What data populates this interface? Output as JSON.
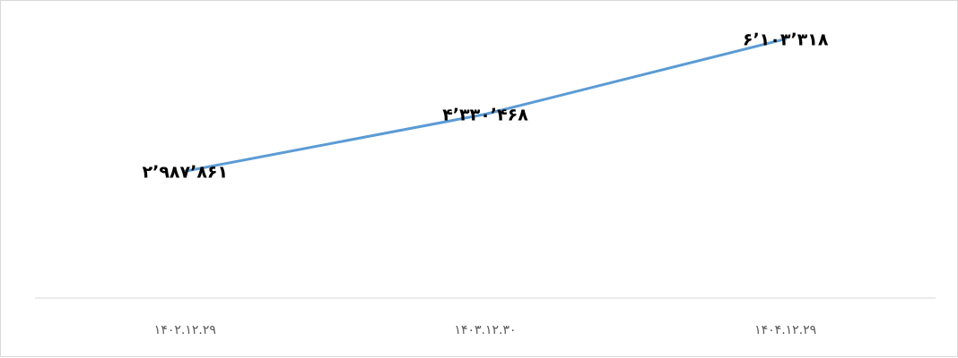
{
  "chart_data": {
    "type": "line",
    "categories": [
      "۱۴۰۲.۱۲.۲۹",
      "۱۴۰۳.۱۲.۳۰",
      "۱۴۰۴.۱۲.۲۹"
    ],
    "series": [
      {
        "values": [
          2987861,
          4330468,
          6103318
        ],
        "data_labels": [
          "۲٬۹۸۷٬۸۶۱",
          "۴٬۳۳۰٬۴۶۸",
          "۶٬۱۰۳٬۳۱۸"
        ],
        "color": "#5b9bd5"
      }
    ],
    "title": "",
    "xlabel": "",
    "ylabel": "",
    "ylim": [
      0,
      7000000
    ],
    "grid": false,
    "legend": "none",
    "y_axis_visible": false
  }
}
